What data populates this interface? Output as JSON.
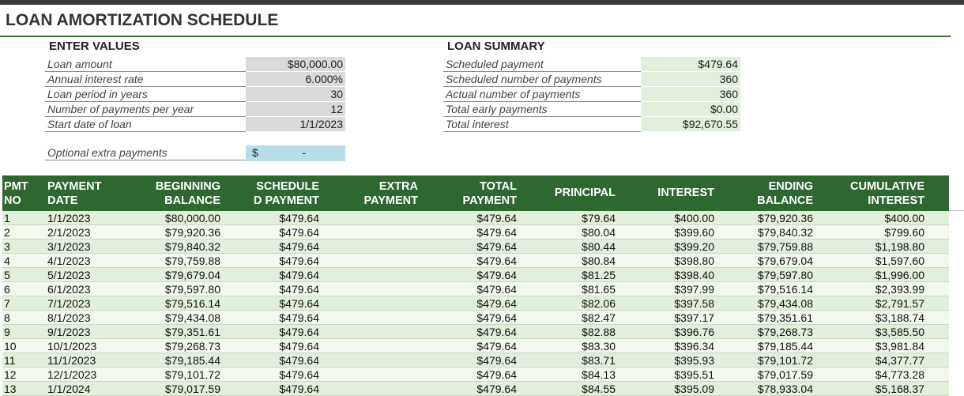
{
  "title": "LOAN AMORTIZATION SCHEDULE",
  "enter_values": {
    "heading": "ENTER VALUES",
    "rows": [
      [
        "Loan amount",
        "$80,000.00"
      ],
      [
        "Annual interest rate",
        "6.000%"
      ],
      [
        "Loan period in years",
        "30"
      ],
      [
        "Number of payments per year",
        "12"
      ],
      [
        "Start date of loan",
        "1/1/2023"
      ]
    ]
  },
  "optional": {
    "label": "Optional extra payments",
    "currency": "$",
    "value": "-"
  },
  "loan_summary": {
    "heading": "LOAN SUMMARY",
    "rows": [
      [
        "Scheduled payment",
        "$479.64"
      ],
      [
        "Scheduled number of payments",
        "360"
      ],
      [
        "Actual number of payments",
        "360"
      ],
      [
        "Total early payments",
        "$0.00"
      ],
      [
        "Total interest",
        "$92,670.55"
      ]
    ]
  },
  "table": {
    "headers": [
      {
        "key": "no",
        "lines": [
          "PMT",
          "NO"
        ]
      },
      {
        "key": "date",
        "lines": [
          "PAYMENT",
          "DATE"
        ]
      },
      {
        "key": "beginning",
        "lines": [
          "BEGINNING",
          "BALANCE"
        ]
      },
      {
        "key": "scheduled",
        "lines": [
          "SCHEDULE",
          "D PAYMENT"
        ]
      },
      {
        "key": "extra",
        "lines": [
          "EXTRA",
          "PAYMENT"
        ]
      },
      {
        "key": "total",
        "lines": [
          "TOTAL",
          "PAYMENT"
        ]
      },
      {
        "key": "principal",
        "lines": [
          "PRINCIPAL"
        ]
      },
      {
        "key": "interest",
        "lines": [
          "INTEREST"
        ]
      },
      {
        "key": "ending",
        "lines": [
          "ENDING",
          "BALANCE"
        ]
      },
      {
        "key": "cumulative",
        "lines": [
          "CUMULATIVE",
          "INTEREST"
        ]
      }
    ],
    "rows": [
      {
        "no": "1",
        "date": "1/1/2023",
        "beginning": "$80,000.00",
        "scheduled": "$479.64",
        "total": "$479.64",
        "principal": "$79.64",
        "interest": "$400.00",
        "ending": "$79,920.36",
        "cumulative": "$400.00"
      },
      {
        "no": "2",
        "date": "2/1/2023",
        "beginning": "$79,920.36",
        "scheduled": "$479.64",
        "total": "$479.64",
        "principal": "$80.04",
        "interest": "$399.60",
        "ending": "$79,840.32",
        "cumulative": "$799.60"
      },
      {
        "no": "3",
        "date": "3/1/2023",
        "beginning": "$79,840.32",
        "scheduled": "$479.64",
        "total": "$479.64",
        "principal": "$80.44",
        "interest": "$399.20",
        "ending": "$79,759.88",
        "cumulative": "$1,198.80"
      },
      {
        "no": "4",
        "date": "4/1/2023",
        "beginning": "$79,759.88",
        "scheduled": "$479.64",
        "total": "$479.64",
        "principal": "$80.84",
        "interest": "$398.80",
        "ending": "$79,679.04",
        "cumulative": "$1,597.60"
      },
      {
        "no": "5",
        "date": "5/1/2023",
        "beginning": "$79,679.04",
        "scheduled": "$479.64",
        "total": "$479.64",
        "principal": "$81.25",
        "interest": "$398.40",
        "ending": "$79,597.80",
        "cumulative": "$1,996.00"
      },
      {
        "no": "6",
        "date": "6/1/2023",
        "beginning": "$79,597.80",
        "scheduled": "$479.64",
        "total": "$479.64",
        "principal": "$81.65",
        "interest": "$397.99",
        "ending": "$79,516.14",
        "cumulative": "$2,393.99"
      },
      {
        "no": "7",
        "date": "7/1/2023",
        "beginning": "$79,516.14",
        "scheduled": "$479.64",
        "total": "$479.64",
        "principal": "$82.06",
        "interest": "$397.58",
        "ending": "$79,434.08",
        "cumulative": "$2,791.57"
      },
      {
        "no": "8",
        "date": "8/1/2023",
        "beginning": "$79,434.08",
        "scheduled": "$479.64",
        "total": "$479.64",
        "principal": "$82.47",
        "interest": "$397.17",
        "ending": "$79,351.61",
        "cumulative": "$3,188.74"
      },
      {
        "no": "9",
        "date": "9/1/2023",
        "beginning": "$79,351.61",
        "scheduled": "$479.64",
        "total": "$479.64",
        "principal": "$82.88",
        "interest": "$396.76",
        "ending": "$79,268.73",
        "cumulative": "$3,585.50"
      },
      {
        "no": "10",
        "date": "10/1/2023",
        "beginning": "$79,268.73",
        "scheduled": "$479.64",
        "total": "$479.64",
        "principal": "$83.30",
        "interest": "$396.34",
        "ending": "$79,185.44",
        "cumulative": "$3,981.84"
      },
      {
        "no": "11",
        "date": "11/1/2023",
        "beginning": "$79,185.44",
        "scheduled": "$479.64",
        "total": "$479.64",
        "principal": "$83.71",
        "interest": "$395.93",
        "ending": "$79,101.72",
        "cumulative": "$4,377.77"
      },
      {
        "no": "12",
        "date": "12/1/2023",
        "beginning": "$79,101.72",
        "scheduled": "$479.64",
        "total": "$479.64",
        "principal": "$84.13",
        "interest": "$395.51",
        "ending": "$79,017.59",
        "cumulative": "$4,773.28"
      },
      {
        "no": "13",
        "date": "1/1/2024",
        "beginning": "$79,017.59",
        "scheduled": "$479.64",
        "total": "$479.64",
        "principal": "$84.55",
        "interest": "$395.09",
        "ending": "$78,933.04",
        "cumulative": "$5,168.37"
      }
    ]
  }
}
